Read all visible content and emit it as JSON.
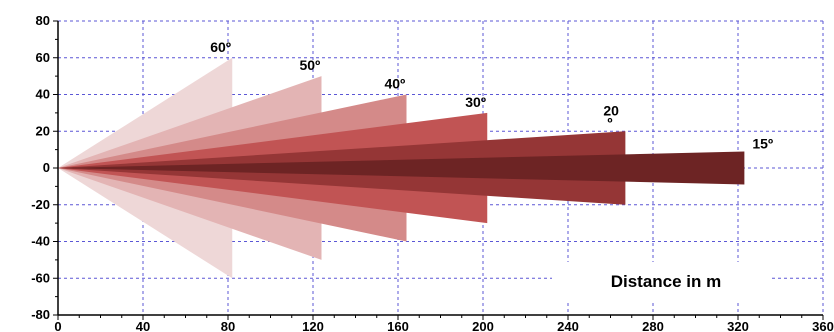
{
  "chart_data": {
    "type": "area",
    "title": "",
    "xlabel": "Distance in m",
    "ylabel": "",
    "xlim": [
      0,
      360
    ],
    "ylim": [
      -80,
      80
    ],
    "x_ticks": [
      "0",
      "40",
      "80",
      "120",
      "160",
      "200",
      "240",
      "280",
      "320",
      "360"
    ],
    "y_ticks": [
      "80",
      "60",
      "40",
      "20",
      "0",
      "-20",
      "-40",
      "-60",
      "-80"
    ],
    "grid": true,
    "series": [
      {
        "name": "60º",
        "label_lines": [
          "60º"
        ],
        "range": 82,
        "half_width": 60,
        "color": "#eed7d7"
      },
      {
        "name": "50º",
        "label_lines": [
          "50º"
        ],
        "range": 124,
        "half_width": 50,
        "color": "#e3b4b4"
      },
      {
        "name": "40º",
        "label_lines": [
          "40º"
        ],
        "range": 164,
        "half_width": 40,
        "color": "#d48a89"
      },
      {
        "name": "30º",
        "label_lines": [
          "30º"
        ],
        "range": 202,
        "half_width": 30,
        "color": "#c15454"
      },
      {
        "name": "20º",
        "label_lines": [
          "20",
          "º"
        ],
        "range": 267,
        "half_width": 20,
        "color": "#953636"
      },
      {
        "name": "15º",
        "label_lines": [
          "15º"
        ],
        "range": 323,
        "half_width": 9,
        "color": "#6d2424"
      }
    ]
  }
}
